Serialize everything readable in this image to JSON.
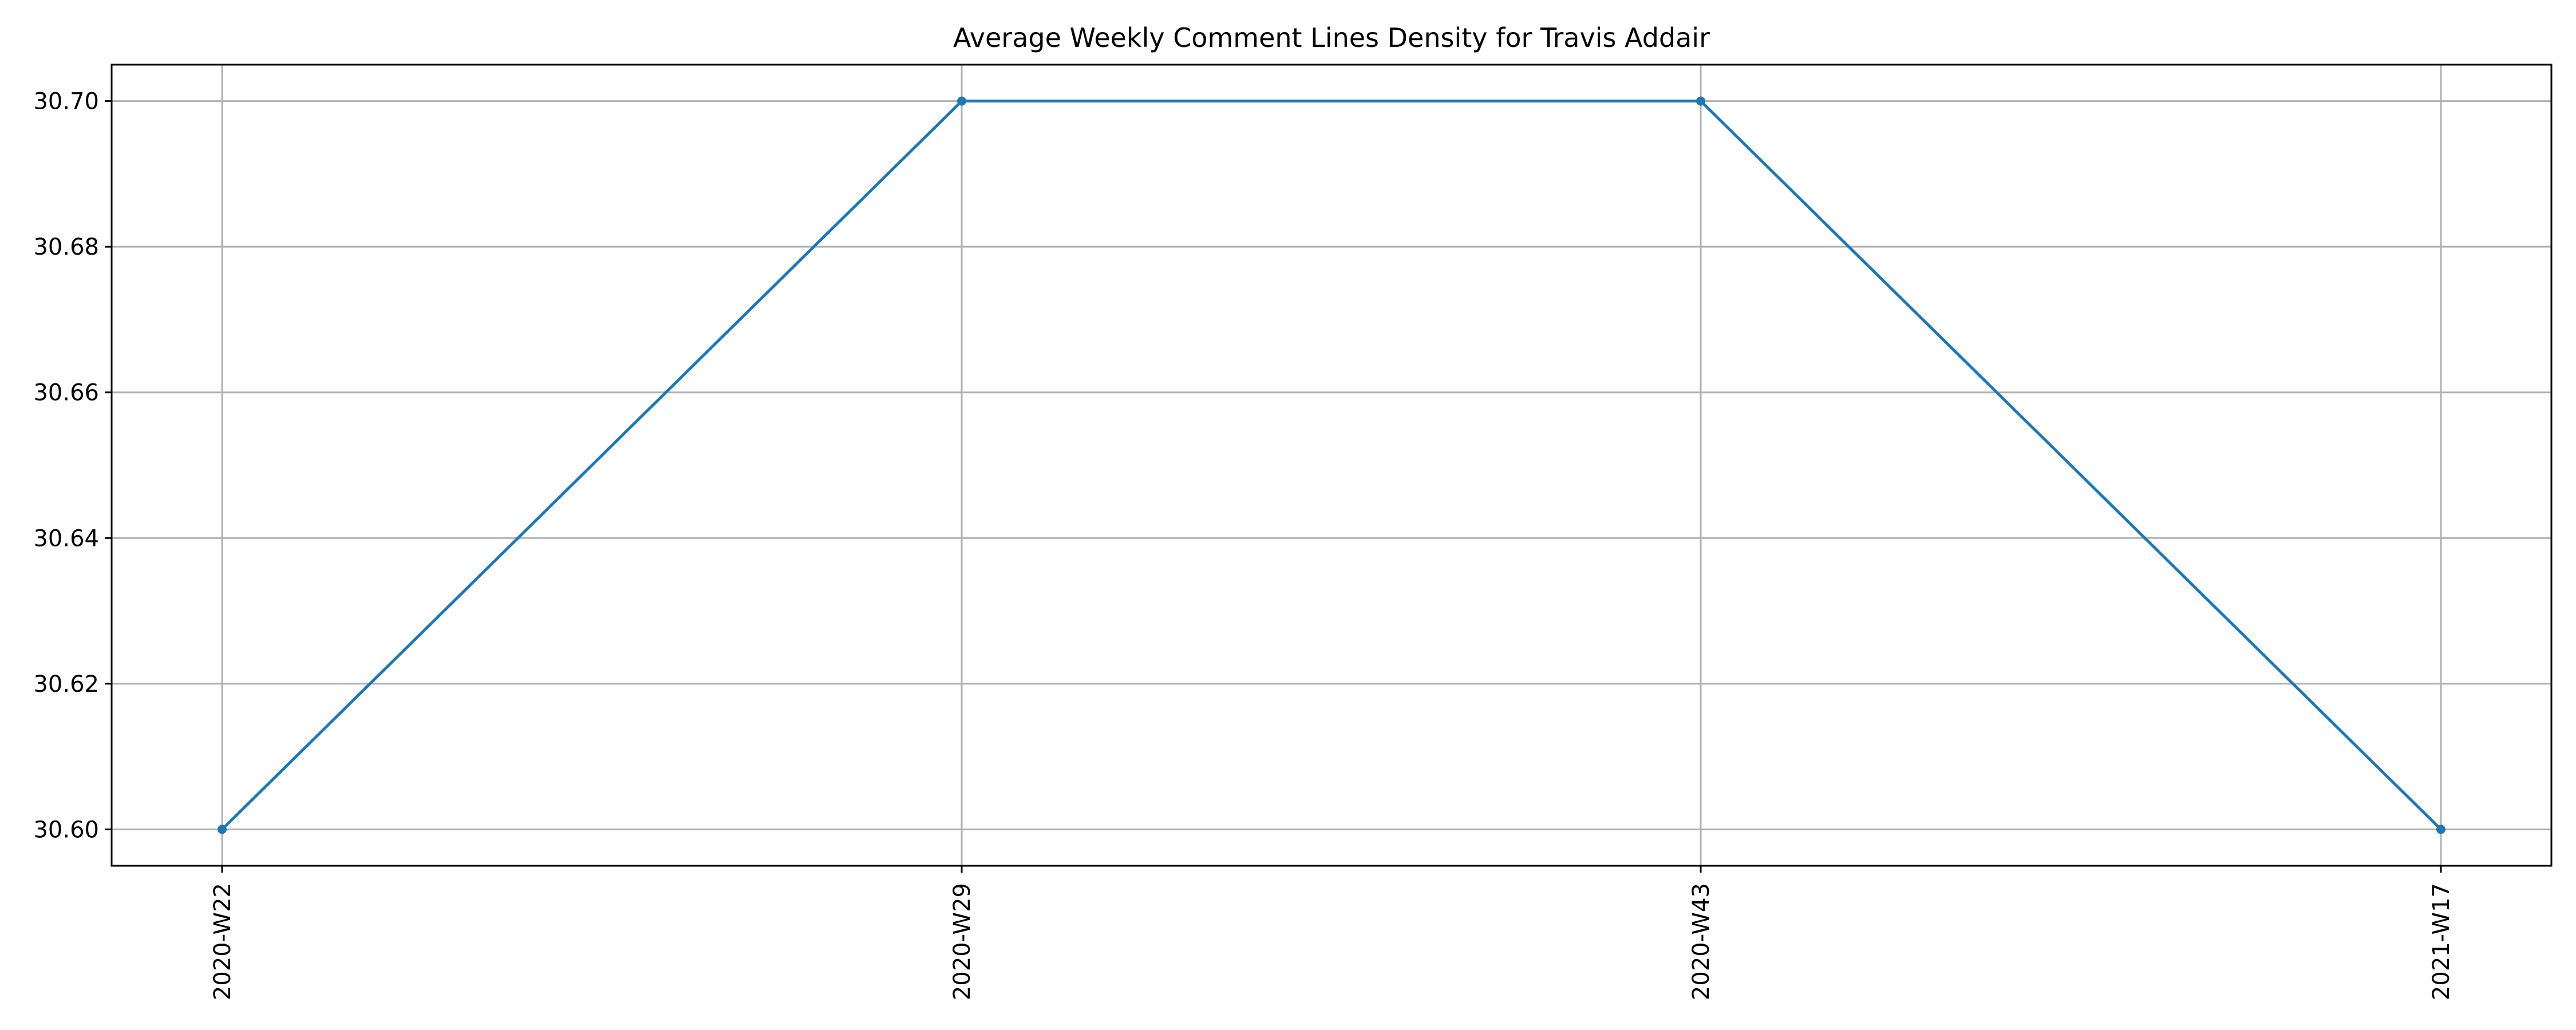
{
  "chart_data": {
    "type": "line",
    "title": "Average Weekly Comment Lines Density for Travis Addair",
    "xlabel": "",
    "ylabel": "",
    "categories": [
      "2020-W22",
      "2020-W29",
      "2020-W43",
      "2021-W17"
    ],
    "series": [
      {
        "values": [
          30.6,
          30.7,
          30.7,
          30.6
        ],
        "color": "#1f77b4",
        "marker": "circle"
      }
    ],
    "ylim": [
      30.595,
      30.705
    ],
    "yticks": [
      "30.60",
      "30.62",
      "30.64",
      "30.66",
      "30.68",
      "30.70"
    ],
    "grid": true,
    "x_tick_rotation": "vertical",
    "legend": "none"
  }
}
